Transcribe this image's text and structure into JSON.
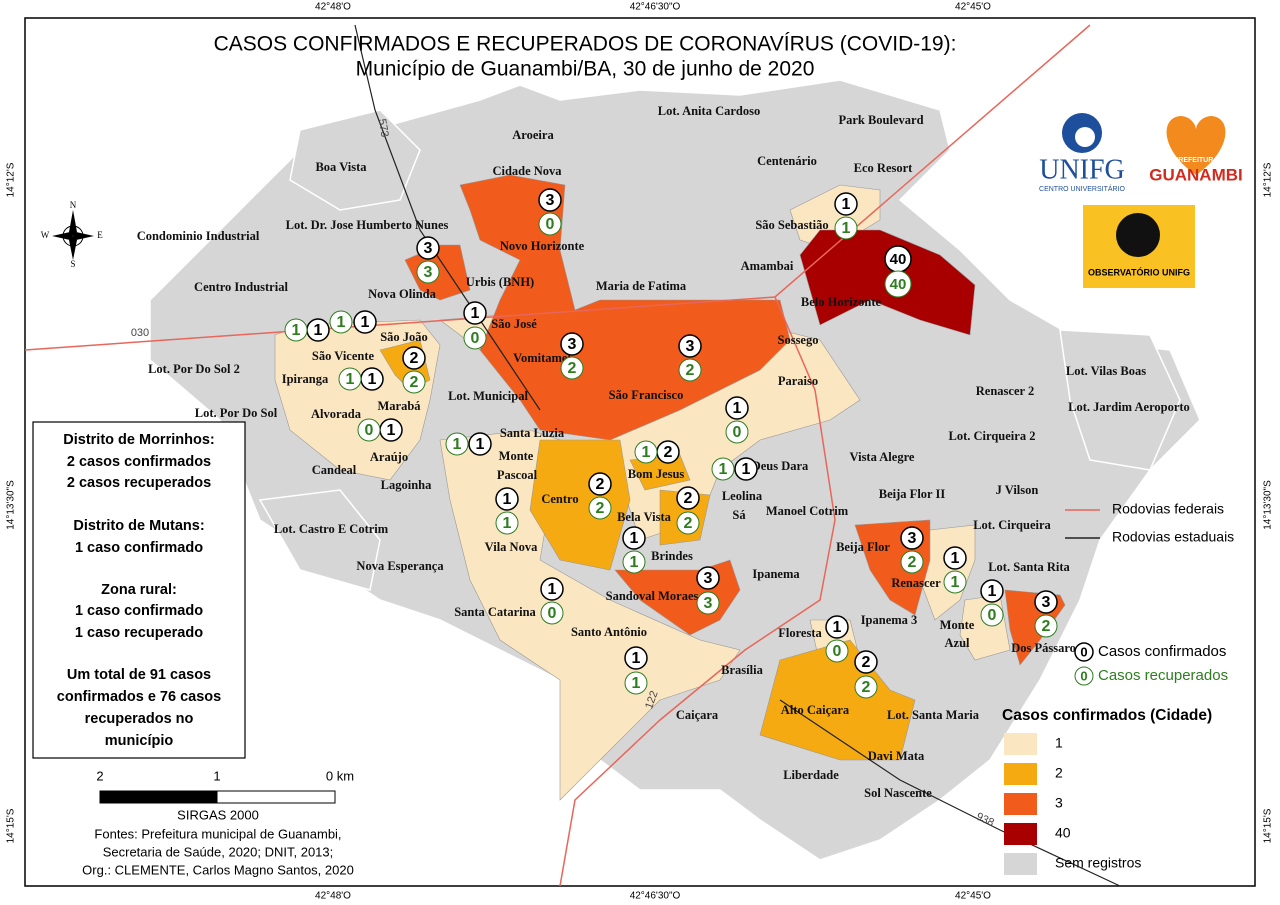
{
  "title": "CASOS CONFIRMADOS E RECUPERADOS DE CORONAVÍRUS (COVID-19):",
  "subtitle": "Município de Guanambi/BA, 30 de junho de 2020",
  "coordinates": {
    "top": [
      "42°48'O",
      "42°46'30\"O",
      "42°45'O"
    ],
    "bottom": [
      "42°48'O",
      "42°46'30\"O",
      "42°45'O"
    ],
    "left": [
      "14°12'S",
      "14°13'30\"S",
      "14°15'S"
    ],
    "right": [
      "14°12'S",
      "14°13'30\"S",
      "14°15'S"
    ]
  },
  "compass": [
    "N",
    "E",
    "S",
    "W"
  ],
  "roads": [
    "573",
    "030",
    "122",
    "938"
  ],
  "neighborhoods": [
    "Aroeira",
    "Cidade Nova",
    "Lot. Anita Cardoso",
    "Park Boulevard",
    "Centenário",
    "Eco Resort",
    "Boa Vista",
    "Lot. Dr. Jose Humberto Nunes",
    "Novo Horizonte",
    "São Sebastião",
    "Condominio Industrial",
    "Amambai",
    "Centro Industrial",
    "Nova Olinda",
    "Urbis (BNH)",
    "Maria de Fatima",
    "Belo Horizonte",
    "São José",
    "São João",
    "Sossego",
    "Vomitamel",
    "São Vicente",
    "Lot. Por Do Sol 2",
    "Ipiranga",
    "Paraiso",
    "Renascer 2",
    "Lot. Vilas Boas",
    "São Francisco",
    "Lot. Municipal",
    "Marabá",
    "Lot. Jardim Aeroporto",
    "Lot. Por Do Sol",
    "Alvorada",
    "Santa Luzia",
    "Lot. Cirqueira 2",
    "Monte",
    "Pascoal",
    "Araújo",
    "Vista Alegre",
    "Deus Dara",
    "Bom Jesus",
    "Candeal",
    "Lagoinha",
    "J Vilson",
    "Beija Flor II",
    "Leolina",
    "Centro",
    "Manoel Cotrim",
    "Sá",
    "Bela Vista",
    "Lot. Castro E Cotrim",
    "Lot. Cirqueira",
    "Beija Flor",
    "Vila Nova",
    "Brindes",
    "Nova Esperança",
    "Ipanema",
    "Renascer",
    "Lot. Santa Rita",
    "Sandoval Moraes",
    "Santa Catarina",
    "Ipanema 3",
    "Monte",
    "Azul",
    "Dos Pássaros",
    "Floresta",
    "Santo Antônio",
    "Brasília",
    "Alto Caiçara",
    "Lot. Santa Maria",
    "Caiçara",
    "Davi Mata",
    "Liberdade",
    "Sol Nascente"
  ],
  "markers": [
    {
      "confirmed": 3,
      "recovered": 0
    },
    {
      "confirmed": 3,
      "recovered": 3
    },
    {
      "confirmed": 1,
      "recovered": 1
    },
    {
      "confirmed": 40,
      "recovered": 40
    },
    {
      "confirmed": 1,
      "recovered": 0
    },
    {
      "confirmed": 1,
      "recovered": 1
    },
    {
      "confirmed": 1,
      "recovered": 1
    },
    {
      "confirmed": 2,
      "recovered": 2
    },
    {
      "confirmed": 1,
      "recovered": 1
    },
    {
      "confirmed": 3,
      "recovered": 2
    },
    {
      "confirmed": 3,
      "recovered": 2
    },
    {
      "confirmed": 1,
      "recovered": 0
    },
    {
      "confirmed": 1,
      "recovered": 0
    },
    {
      "confirmed": 1,
      "recovered": 1
    },
    {
      "confirmed": 2,
      "recovered": 1
    },
    {
      "confirmed": 1,
      "recovered": 1
    },
    {
      "confirmed": 2,
      "recovered": 2
    },
    {
      "confirmed": 1,
      "recovered": 1
    },
    {
      "confirmed": 2,
      "recovered": 2
    },
    {
      "confirmed": 1,
      "recovered": 1
    },
    {
      "confirmed": 3,
      "recovered": 2
    },
    {
      "confirmed": 1,
      "recovered": 1
    },
    {
      "confirmed": 3,
      "recovered": 3
    },
    {
      "confirmed": 1,
      "recovered": 0
    },
    {
      "confirmed": 3,
      "recovered": 2
    },
    {
      "confirmed": 1,
      "recovered": 0
    },
    {
      "confirmed": 1,
      "recovered": 0
    },
    {
      "confirmed": 2,
      "recovered": 2
    },
    {
      "confirmed": 1,
      "recovered": 1
    }
  ],
  "info": [
    "Distrito de Morrinhos:",
    "2 casos confirmados",
    "2 casos recuperados",
    "Distrito de Mutans:",
    "1 caso confirmado",
    "Zona rural:",
    "1 caso confirmado",
    "1 caso recuperado",
    "Um total de 91 casos",
    "confirmados e 76 casos",
    "recuperados no",
    "município"
  ],
  "scale": {
    "ticks": [
      2,
      1,
      {
        "value": 0,
        "label": "0 km"
      }
    ],
    "crs": "SIRGAS 2000"
  },
  "sources": [
    "Fontes: Prefeitura municipal de Guanambi,",
    "Secretaria de Saúde,  2020; DNIT, 2013;",
    "Org.: CLEMENTE, Carlos Magno Santos, 2020"
  ],
  "logos": {
    "unifg": "UNIFG",
    "unifg_sub": "CENTRO UNIVERSITÁRIO",
    "prefeitura": "PREFEITURA",
    "guanambi": "GUANAMBI",
    "observatorio": "OBSERVATÓRIO UNIFG"
  },
  "legend": {
    "federal": {
      "label": "Rodovias federais",
      "color": "#e8665a"
    },
    "state": {
      "label": "Rodovias estaduais",
      "color": "#222222"
    },
    "confirmed": {
      "symbol": 0,
      "label": "Casos confirmados"
    },
    "recovered": {
      "symbol": 0,
      "label": "Casos recuperados",
      "color": "#2e7d1f"
    },
    "title": "Casos confirmados (Cidade)",
    "classes": [
      {
        "value": 1,
        "color": "#fbe6c2"
      },
      {
        "value": 2,
        "color": "#f5aa12"
      },
      {
        "value": 3,
        "color": "#f15b1b"
      },
      {
        "value": 40,
        "color": "#a80000"
      }
    ],
    "no_data": {
      "label": "Sem registros",
      "color": "#d6d6d6"
    }
  }
}
